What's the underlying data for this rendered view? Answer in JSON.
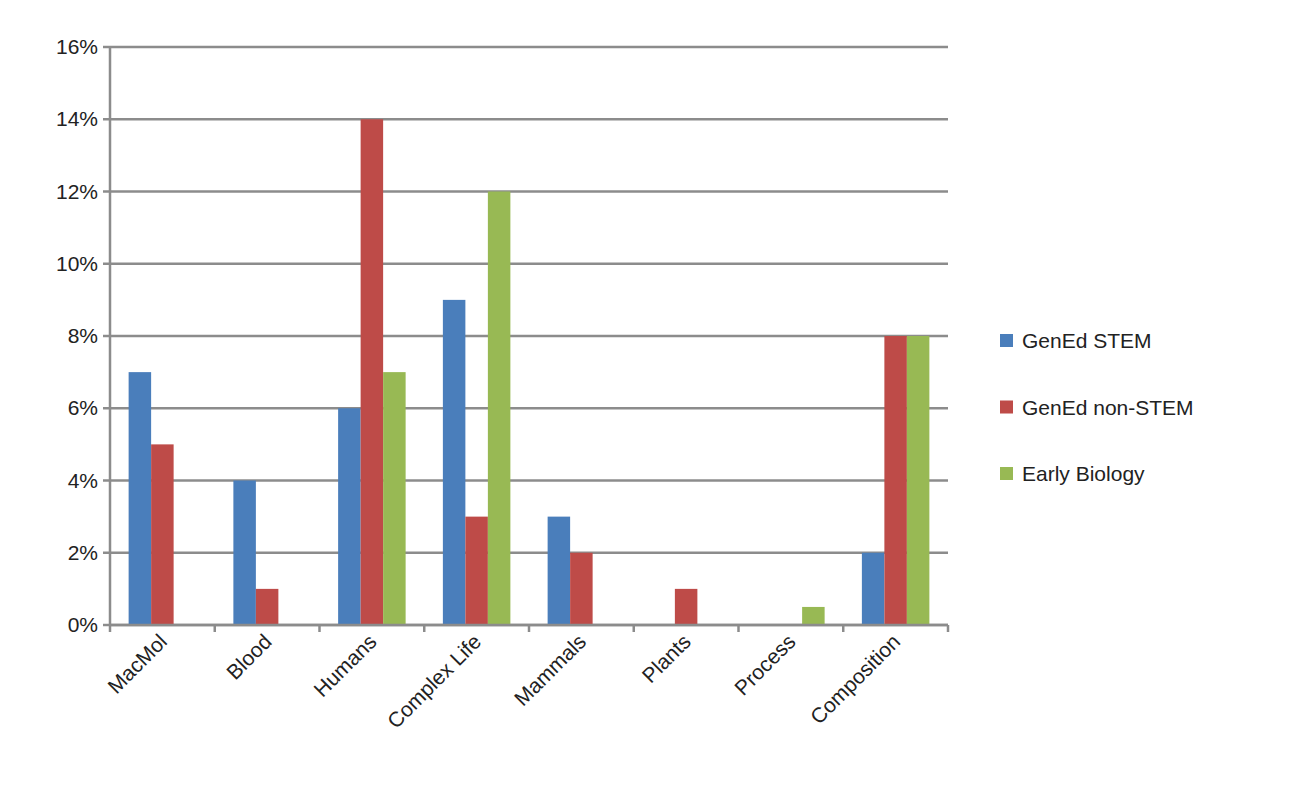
{
  "chart_data": {
    "type": "bar",
    "categories": [
      "MacMol",
      "Blood",
      "Humans",
      "Complex Life",
      "Mammals",
      "Plants",
      "Process",
      "Composition"
    ],
    "series": [
      {
        "name": "GenEd STEM",
        "color": "#4a7ebb",
        "values": [
          7,
          4,
          6,
          9,
          3,
          0,
          0,
          2
        ]
      },
      {
        "name": "GenEd non-STEM",
        "color": "#be4b48",
        "values": [
          5,
          1,
          14,
          3,
          2,
          1,
          0,
          8
        ]
      },
      {
        "name": "Early Biology",
        "color": "#98b954",
        "values": [
          0,
          0,
          7,
          12,
          0,
          0,
          0.5,
          8
        ]
      }
    ],
    "ylim": [
      0,
      16
    ],
    "yticks": [
      {
        "value": 0,
        "label": "0%"
      },
      {
        "value": 2,
        "label": "2%"
      },
      {
        "value": 4,
        "label": "4%"
      },
      {
        "value": 6,
        "label": "6%"
      },
      {
        "value": 8,
        "label": "8%"
      },
      {
        "value": 10,
        "label": "10%"
      },
      {
        "value": 12,
        "label": "12%"
      },
      {
        "value": 14,
        "label": "14%"
      },
      {
        "value": 16,
        "label": "16%"
      }
    ],
    "grid": true,
    "legend": "right"
  }
}
